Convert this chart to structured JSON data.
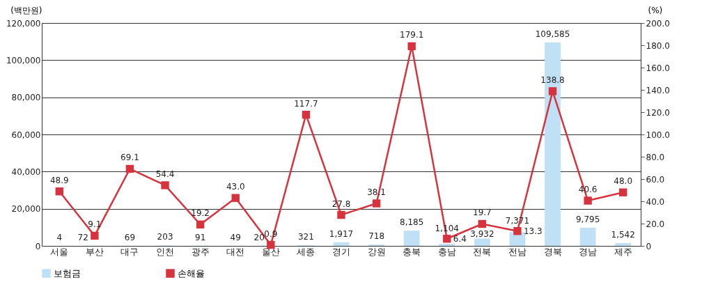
{
  "chart_data": {
    "type": "bar",
    "categories": [
      "서울",
      "부산",
      "대구",
      "인천",
      "광주",
      "대전",
      "울산",
      "세종",
      "경기",
      "강원",
      "충북",
      "충남",
      "전북",
      "전남",
      "경북",
      "경남",
      "제주"
    ],
    "ylabel": "(백만원)",
    "y2label": "(%)",
    "ylim": [
      0,
      120000
    ],
    "yticks": [
      0,
      {
        "value": 20000,
        "label": "20,000"
      },
      {
        "value": 40000,
        "label": "40,000"
      },
      {
        "value": 60000,
        "label": "60,000"
      },
      {
        "value": 80000,
        "label": "80,000"
      },
      {
        "value": 100000,
        "label": "100,000"
      },
      {
        "value": 120000,
        "label": "120,000"
      }
    ],
    "y2lim": [
      0,
      200
    ],
    "y2ticks": [
      0,
      {
        "value": 20,
        "label": "20.0"
      },
      {
        "value": 40,
        "label": "40.0"
      },
      {
        "value": 60,
        "label": "60.0"
      },
      {
        "value": 80,
        "label": "80.0"
      },
      {
        "value": 100,
        "label": "100.0"
      },
      {
        "value": 120,
        "label": "120.0"
      },
      {
        "value": 140,
        "label": "140.0"
      },
      {
        "value": 160,
        "label": "160.0"
      },
      {
        "value": 180,
        "label": "180.0"
      },
      {
        "value": 200,
        "label": "200.0"
      }
    ],
    "grid": "y",
    "legend": "bottom",
    "series": [
      {
        "name": "보험금",
        "color": "#bfe0f5",
        "values": [
          4,
          72,
          69,
          203,
          91,
          49,
          20,
          321,
          1917,
          718,
          8185,
          1104,
          3932,
          7371,
          109585,
          9795,
          1542
        ],
        "value_labels": [
          "4",
          "72",
          "69",
          "203",
          "91",
          "49",
          "20",
          "321",
          "1,917",
          "718",
          "8,185",
          "1,104",
          "3,932",
          "7,371",
          "109,585",
          "9,795",
          "1,542"
        ]
      },
      {
        "name": "손해율",
        "type": "line",
        "axis": "y2",
        "color": "#d7333f",
        "marker": "square",
        "line_style": "solid",
        "values": [
          48.9,
          9.1,
          69.1,
          54.4,
          19.2,
          43.0,
          0.9,
          117.7,
          27.8,
          38.1,
          179.1,
          6.4,
          19.7,
          13.3,
          138.8,
          40.6,
          48.0
        ],
        "value_labels": [
          "48.9",
          "9.1",
          "69.1",
          "54.4",
          "19.2",
          "43.0",
          "0.9",
          "117.7",
          "27.8",
          "38.1",
          "179.1",
          "6.4",
          "19.7",
          "13.3",
          "138.8",
          "40.6",
          "48.0"
        ]
      }
    ]
  }
}
